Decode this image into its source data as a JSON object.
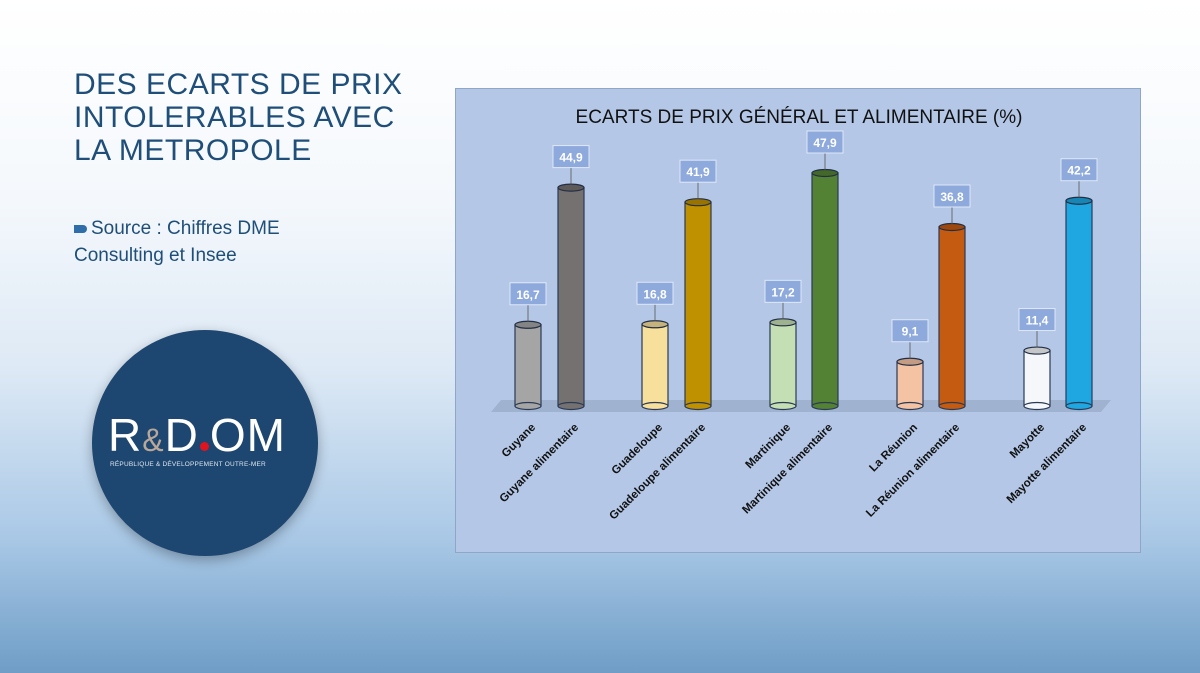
{
  "slide": {
    "title_lines": [
      "DES ECARTS DE PRIX",
      "INTOLERABLES AVEC",
      "LA METROPOLE"
    ],
    "source_text": "Source : Chiffres DME Consulting et Insee"
  },
  "logo": {
    "wordmark": "R&D.OM",
    "subtitle": "RÉPUBLIQUE & DÉVELOPPEMENT OUTRE-MER"
  },
  "chart_data": {
    "type": "bar",
    "title": "ECARTS DE PRIX GÉNÉRAL ET ALIMENTAIRE (%)",
    "categories": [
      "Guyane",
      "Guyane alimentaire",
      "Guadeloupe",
      "Guadeloupe alimentaire",
      "Martinique",
      "Martinique alimentaire",
      "La Réunion",
      "La Réunion alimentaire",
      "Mayotte",
      "Mayotte alimentaire"
    ],
    "values": [
      16.7,
      44.9,
      16.8,
      41.9,
      17.2,
      47.9,
      9.1,
      36.8,
      11.4,
      42.2
    ],
    "data_labels": [
      "16,7",
      "44,9",
      "16,8",
      "41,9",
      "17,2",
      "47,9",
      "9,1",
      "36,8",
      "11,4",
      "42,2"
    ],
    "colors": [
      "#a5a5a5",
      "#767171",
      "#f7df9c",
      "#bf9000",
      "#c5dfb4",
      "#548235",
      "#f4c3a4",
      "#c55a11",
      "#f5f7fa",
      "#1ea7e1"
    ],
    "ylim": [
      0,
      50
    ],
    "grid": false,
    "legend": "none"
  }
}
